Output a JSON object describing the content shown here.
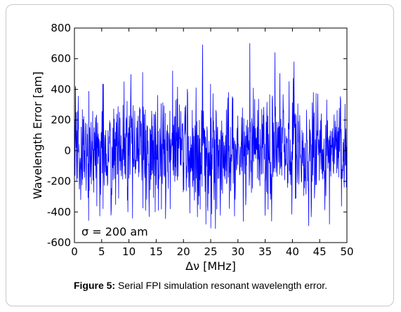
{
  "chart_data": {
    "type": "line",
    "xlabel": "Δν [MHz]",
    "ylabel": "Wavelength Error [am]",
    "xlim": [
      0,
      50
    ],
    "ylim": [
      -600,
      800
    ],
    "xticks": [
      0,
      5,
      10,
      15,
      20,
      25,
      30,
      35,
      40,
      45,
      50
    ],
    "yticks": [
      -600,
      -400,
      -200,
      0,
      200,
      400,
      600,
      800
    ],
    "annotation": "σ = 200 am",
    "grid": false,
    "line_color": "#0000ff",
    "series": [
      {
        "sigma": 200,
        "num_points": 1000,
        "x_range": [
          0,
          50
        ],
        "notable_peaks": [
          {
            "x": 23.5,
            "y": 690
          },
          {
            "x": 32.2,
            "y": 700
          },
          {
            "x": 36.8,
            "y": 640
          },
          {
            "x": 12.5,
            "y": 510
          },
          {
            "x": 18.0,
            "y": 520
          },
          {
            "x": 40.3,
            "y": 580
          },
          {
            "x": 25.0,
            "y": -505
          },
          {
            "x": 24.1,
            "y": -480
          },
          {
            "x": 43.0,
            "y": -490
          },
          {
            "x": 46.8,
            "y": -480
          },
          {
            "x": 9.8,
            "y": -400
          },
          {
            "x": 36.2,
            "y": -460
          }
        ]
      }
    ]
  },
  "caption": {
    "label": "Figure 5:",
    "text": " Serial FPI simulation resonant wavelength error."
  }
}
